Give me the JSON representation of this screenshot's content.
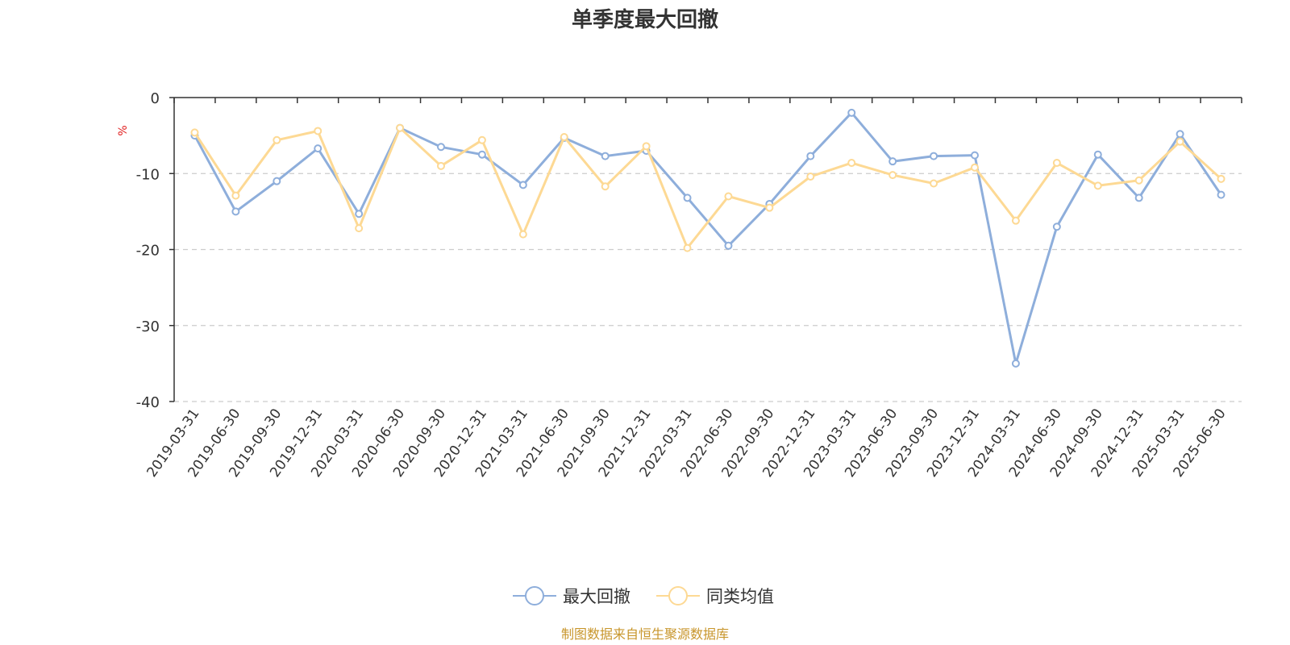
{
  "chart_data": {
    "type": "line",
    "title": "单季度最大回撤",
    "ylabel": "%",
    "ylim": [
      -40,
      0
    ],
    "yticks": [
      0,
      -10,
      -20,
      -30,
      -40
    ],
    "grid": true,
    "legend_position": "bottom",
    "categories": [
      "2019-03-31",
      "2019-06-30",
      "2019-09-30",
      "2019-12-31",
      "2020-03-31",
      "2020-06-30",
      "2020-09-30",
      "2020-12-31",
      "2021-03-31",
      "2021-06-30",
      "2021-09-30",
      "2021-12-31",
      "2022-03-31",
      "2022-06-30",
      "2022-09-30",
      "2022-12-31",
      "2023-03-31",
      "2023-06-30",
      "2023-09-30",
      "2023-12-31",
      "2024-03-31",
      "2024-06-30",
      "2024-09-30",
      "2024-12-31",
      "2025-03-31",
      "2025-06-30"
    ],
    "series": [
      {
        "name": "最大回撤",
        "color": "#8eaedb",
        "values": [
          -5.0,
          -15.0,
          -11.0,
          -6.7,
          -15.3,
          -4.0,
          -6.5,
          -7.5,
          -11.5,
          -5.3,
          -7.7,
          -7.0,
          -13.2,
          -19.5,
          -14.0,
          -7.7,
          -2.0,
          -8.4,
          -7.7,
          -7.6,
          -35.0,
          -17.0,
          -7.5,
          -13.2,
          -4.8,
          -12.8
        ]
      },
      {
        "name": "同类均值",
        "color": "#fdd994",
        "values": [
          -4.6,
          -12.9,
          -5.6,
          -4.4,
          -17.2,
          -4.0,
          -9.0,
          -5.6,
          -18.0,
          -5.2,
          -11.7,
          -6.4,
          -19.8,
          -13.0,
          -14.5,
          -10.4,
          -8.6,
          -10.2,
          -11.3,
          -9.2,
          -16.2,
          -8.6,
          -11.6,
          -10.9,
          -5.8,
          -10.7
        ]
      }
    ],
    "source": "制图数据来自恒生聚源数据库",
    "source_color": "#c8962c",
    "unit_color": "#e02020",
    "axis_color": "#333333",
    "grid_color": "#cccccc"
  }
}
